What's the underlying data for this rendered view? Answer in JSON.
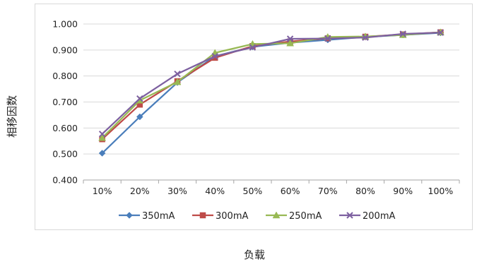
{
  "chart_data": {
    "type": "line",
    "title": "",
    "xlabel": "负载",
    "ylabel": "相移因数",
    "categories": [
      "10%",
      "20%",
      "30%",
      "40%",
      "50%",
      "60%",
      "70%",
      "80%",
      "90%",
      "100%"
    ],
    "ylim": [
      0.4,
      1.0
    ],
    "yticks": [
      "0.400",
      "0.500",
      "0.600",
      "0.700",
      "0.800",
      "0.900",
      "1.000"
    ],
    "grid": "horizontal",
    "legend_position": "bottom",
    "series": [
      {
        "name": "350mA",
        "color": "#4a7ebb",
        "marker": "diamond",
        "values": [
          0.503,
          0.643,
          0.775,
          0.876,
          0.912,
          0.928,
          0.939,
          0.95,
          0.958,
          0.966
        ]
      },
      {
        "name": "300mA",
        "color": "#be4b48",
        "marker": "square",
        "values": [
          0.557,
          0.69,
          0.78,
          0.87,
          0.915,
          0.933,
          0.945,
          0.951,
          0.96,
          0.968
        ]
      },
      {
        "name": "250mA",
        "color": "#98b954",
        "marker": "triangle",
        "values": [
          0.562,
          0.706,
          0.777,
          0.889,
          0.923,
          0.926,
          0.95,
          0.952,
          0.958,
          0.968
        ]
      },
      {
        "name": "200mA",
        "color": "#7d60a0",
        "marker": "x",
        "values": [
          0.577,
          0.713,
          0.808,
          0.876,
          0.91,
          0.943,
          0.944,
          0.948,
          0.962,
          0.967
        ]
      }
    ]
  }
}
